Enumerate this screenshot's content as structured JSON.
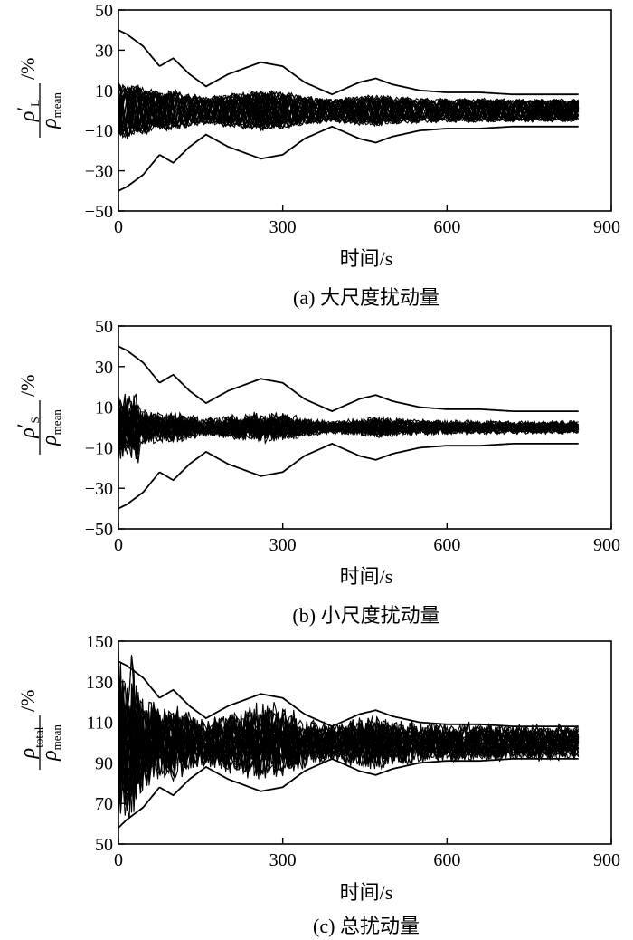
{
  "chart_data": [
    {
      "type": "line",
      "panel": "a",
      "caption": "(a) 大尺度扰动量",
      "xlabel": "时间/s",
      "ylabel": {
        "num_sym": "ρ",
        "num_prime": "′",
        "num_sub": "L",
        "den_sym": "ρ",
        "den_sub": "mean",
        "unit": "/%"
      },
      "xlim": [
        0,
        900
      ],
      "ylim": [
        -50,
        50
      ],
      "x_ticks": [
        0,
        300,
        600,
        900
      ],
      "y_ticks": [
        50,
        30,
        10,
        -10,
        -30,
        -50
      ],
      "band_amplitude": 15,
      "noise_level": 0,
      "envelope": {
        "t": [
          0,
          15,
          45,
          75,
          100,
          130,
          160,
          200,
          260,
          300,
          340,
          390,
          440,
          470,
          500,
          550,
          600,
          660,
          720,
          780,
          840
        ],
        "upper": [
          40,
          38,
          32,
          22,
          26,
          18,
          12,
          18,
          24,
          22,
          14,
          8,
          14,
          16,
          13,
          10,
          9,
          9,
          8,
          8,
          8
        ],
        "lower": [
          -40,
          -38,
          -32,
          -22,
          -26,
          -18,
          -12,
          -18,
          -24,
          -22,
          -14,
          -8,
          -14,
          -16,
          -13,
          -10,
          -9,
          -9,
          -8,
          -8,
          -8
        ]
      }
    },
    {
      "type": "line",
      "panel": "b",
      "caption": "(b) 小尺度扰动量",
      "xlabel": "时间/s",
      "ylabel": {
        "num_sym": "ρ",
        "num_prime": "′",
        "num_sub": "S",
        "den_sym": "ρ",
        "den_sub": "mean",
        "unit": "/%"
      },
      "xlim": [
        0,
        900
      ],
      "ylim": [
        -50,
        50
      ],
      "x_ticks": [
        0,
        300,
        600,
        900
      ],
      "y_ticks": [
        50,
        30,
        10,
        -10,
        -30,
        -50
      ],
      "band_amplitude": 5,
      "noise_level": 1,
      "envelope": {
        "t": [
          0,
          15,
          45,
          75,
          100,
          130,
          160,
          200,
          260,
          300,
          340,
          390,
          440,
          470,
          500,
          550,
          600,
          660,
          720,
          780,
          840
        ],
        "upper": [
          40,
          38,
          32,
          22,
          26,
          18,
          12,
          18,
          24,
          22,
          14,
          8,
          14,
          16,
          13,
          10,
          9,
          9,
          8,
          8,
          8
        ],
        "lower": [
          -40,
          -38,
          -32,
          -22,
          -26,
          -18,
          -12,
          -18,
          -24,
          -22,
          -14,
          -8,
          -14,
          -16,
          -13,
          -10,
          -9,
          -9,
          -8,
          -8,
          -8
        ]
      }
    },
    {
      "type": "line",
      "panel": "c",
      "caption": "(c) 总扰动量",
      "xlabel": "时间/s",
      "ylabel": {
        "num_sym": "ρ",
        "num_prime": "",
        "num_sub": "total",
        "den_sym": "ρ",
        "den_sub": "mean",
        "unit": "/%"
      },
      "xlim": [
        0,
        900
      ],
      "ylim": [
        50,
        150
      ],
      "x_ticks": [
        0,
        300,
        600,
        900
      ],
      "y_ticks": [
        150,
        130,
        110,
        90,
        70,
        50
      ],
      "band_amplitude": 16,
      "noise_level": 0.7,
      "envelope": {
        "t": [
          0,
          15,
          45,
          75,
          100,
          130,
          160,
          200,
          260,
          300,
          340,
          390,
          440,
          470,
          500,
          550,
          600,
          660,
          720,
          780,
          840
        ],
        "upper": [
          140,
          138,
          132,
          122,
          126,
          118,
          112,
          118,
          124,
          122,
          114,
          108,
          114,
          116,
          113,
          110,
          109,
          109,
          108,
          108,
          108
        ],
        "lower": [
          58,
          62,
          68,
          78,
          74,
          82,
          88,
          82,
          76,
          78,
          86,
          92,
          86,
          84,
          87,
          90,
          91,
          91,
          92,
          92,
          92
        ]
      }
    }
  ]
}
